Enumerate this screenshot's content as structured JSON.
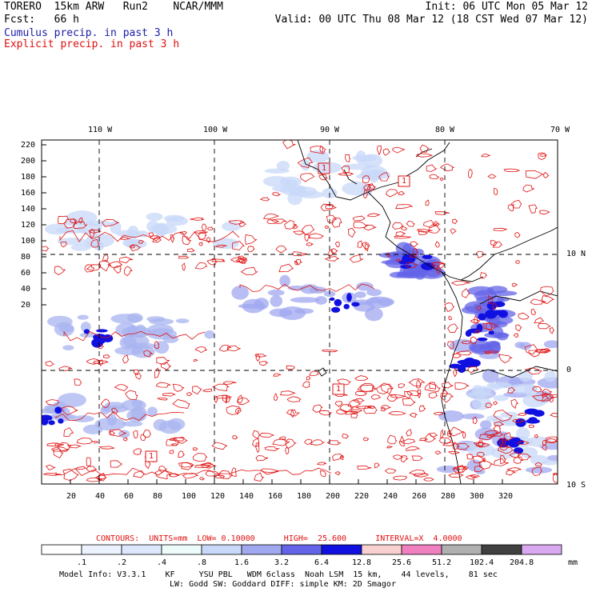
{
  "header": {
    "line1_left": "TORERO  15km ARW   Run2    NCAR/MMM",
    "line1_right": "Init: 06 UTC Mon 05 Mar 12",
    "line2_left": "Fcst:   66 h",
    "line2_right": "Valid: 00 UTC Thu 08 Mar 12 (18 CST Wed 07 Mar 12)",
    "line3": "Cumulus precip. in past 3 h",
    "line4": "Explicit precip. in past 3 h"
  },
  "colors": {
    "cumulus_title": "#1c1ca8",
    "explicit_title": "#e01010",
    "contour": "#e01010",
    "grid": "#000000"
  },
  "map": {
    "lon_labels": [
      "110 W",
      "100 W",
      "90 W",
      "80 W",
      "70 W"
    ],
    "lat_labels": [
      "10 N",
      "0",
      "10 S"
    ],
    "y_ticks": [
      "220",
      "200",
      "180",
      "160",
      "140",
      "120",
      "100",
      "80",
      "60",
      "40",
      "20"
    ],
    "x_ticks": [
      "20",
      "40",
      "60",
      "80",
      "100",
      "120",
      "140",
      "160",
      "180",
      "200",
      "220",
      "240",
      "260",
      "280",
      "300",
      "320"
    ],
    "contour_labels": [
      "1",
      "1",
      "1",
      "1"
    ]
  },
  "contours_info": {
    "label": "CONTOURS:  UNITS=mm  LOW= 0.10000      HIGH=  25.600      INTERVAL=X  4.0000"
  },
  "colorbar": {
    "labels": [
      ".1",
      ".2",
      ".4",
      ".8",
      "1.6",
      "3.2",
      "6.4",
      "12.8",
      "25.6",
      "51.2",
      "102.4",
      "204.8"
    ],
    "units": "mm",
    "colors": [
      "#ffffff",
      "#ecf3ff",
      "#dde8ff",
      "#eefbfb",
      "#c8d8f8",
      "#a0a8f0",
      "#6464e8",
      "#1010e0",
      "#f8d0d0",
      "#f080c0",
      "#b0b0b0",
      "#404040",
      "#d8a8f0"
    ]
  },
  "footer": {
    "line1": "Model Info: V3.3.1    KF     YSU PBL   WDM 6class  Noah LSM  15 km,    44 levels,    81 sec",
    "line2": "LW: Godd SW: Goddard DIFF: simple KM: 2D Smagor"
  }
}
